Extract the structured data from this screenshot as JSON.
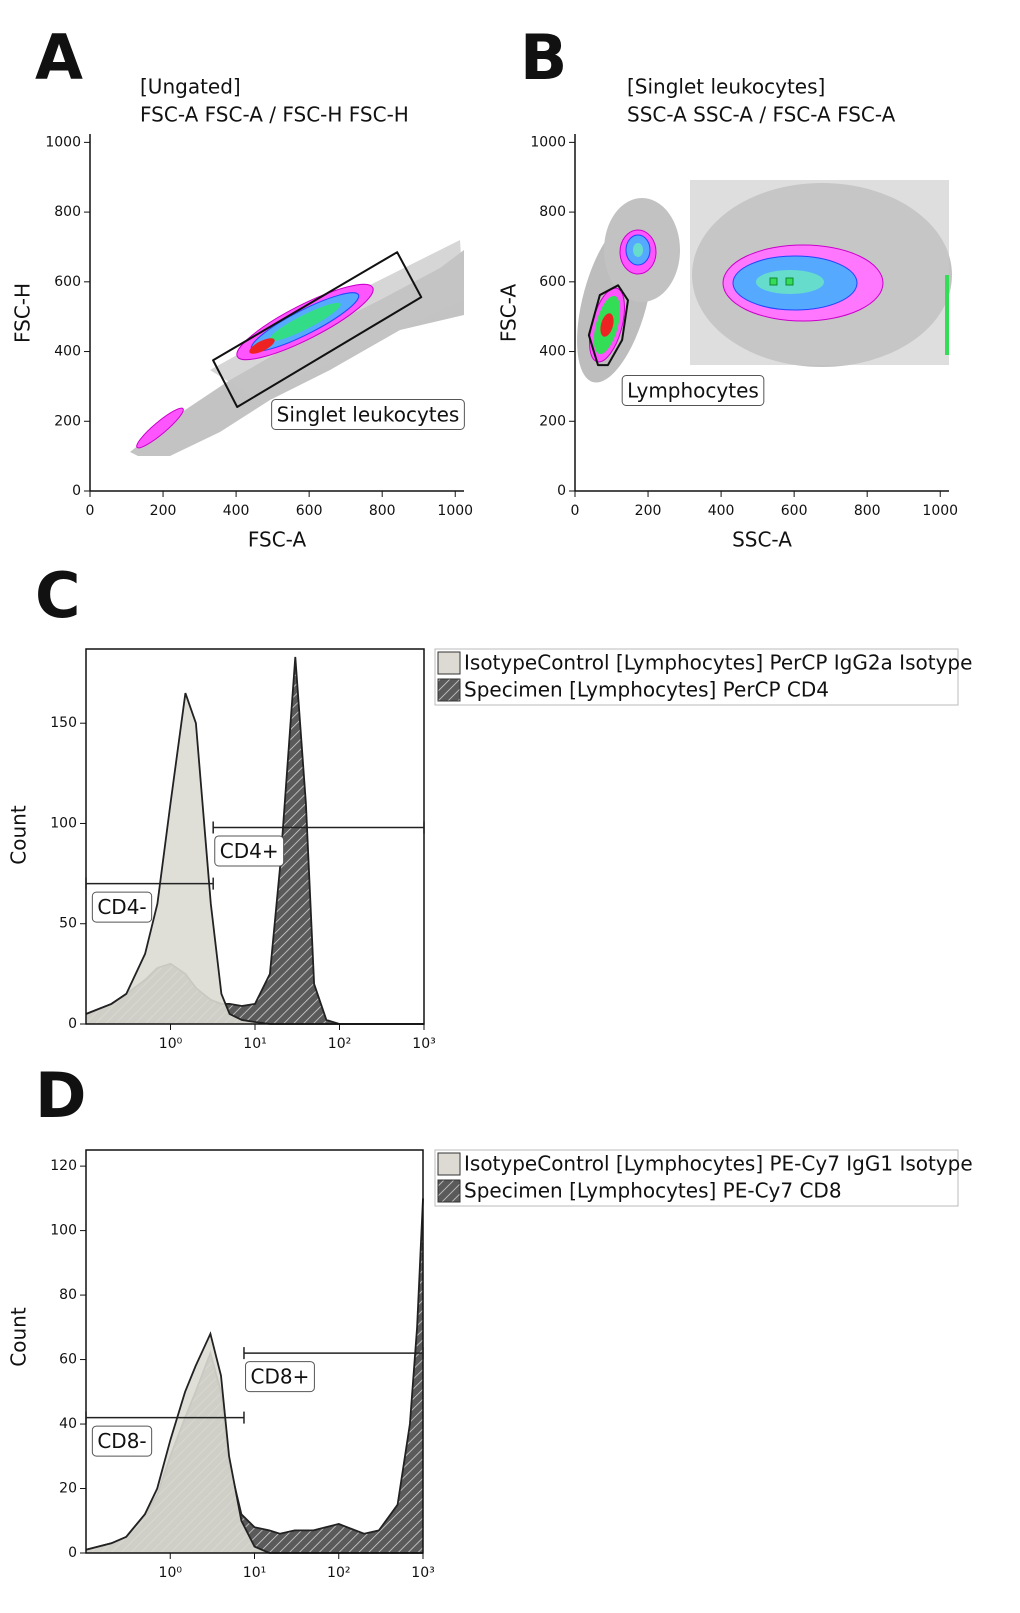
{
  "chart_data": [
    {
      "type": "scatter",
      "panel": "A",
      "title": [
        "[Ungated]",
        "FSC-A FSC-A / FSC-H FSC-H"
      ],
      "xlabel": "FSC-A",
      "ylabel": "FSC-H",
      "xlim": [
        0,
        1024
      ],
      "ylim": [
        0,
        1024
      ],
      "xticks": [
        0,
        200,
        400,
        600,
        800,
        1000
      ],
      "yticks": [
        0,
        200,
        400,
        600,
        800,
        1000
      ],
      "gate": {
        "label": "Singlet leukocytes",
        "points": [
          [
            337,
            375
          ],
          [
            841,
            685
          ],
          [
            907,
            556
          ],
          [
            403,
            241
          ]
        ]
      }
    },
    {
      "type": "scatter",
      "panel": "B",
      "title": [
        "[Singlet leukocytes]",
        "SSC-A SSC-A / FSC-A FSC-A"
      ],
      "xlabel": "SSC-A",
      "ylabel": "FSC-A",
      "xlim": [
        0,
        1024
      ],
      "ylim": [
        0,
        1024
      ],
      "xticks": [
        0,
        200,
        400,
        600,
        800,
        1000
      ],
      "yticks": [
        0,
        200,
        400,
        600,
        800,
        1000
      ],
      "gate": {
        "label": "Lymphocytes",
        "points": [
          [
            63,
            361
          ],
          [
            38,
            447
          ],
          [
            68,
            562
          ],
          [
            118,
            590
          ],
          [
            145,
            547
          ],
          [
            129,
            433
          ],
          [
            90,
            361
          ]
        ]
      }
    },
    {
      "type": "histogram",
      "panel": "C",
      "ylabel": "Count",
      "xscale": "log",
      "xlim": [
        0.1,
        1000
      ],
      "ylim": [
        0,
        187
      ],
      "xticks": [
        {
          "value": 1,
          "label": "10⁰"
        },
        {
          "value": 10,
          "label": "10¹"
        },
        {
          "value": 100,
          "label": "10²"
        },
        {
          "value": 1000,
          "label": "10³"
        }
      ],
      "yticks": [
        0,
        50,
        100,
        150
      ],
      "x": [
        0.1,
        0.2,
        0.3,
        0.5,
        0.7,
        1,
        1.5,
        2,
        3,
        4,
        5,
        7,
        10,
        15,
        20,
        30,
        40,
        50,
        70,
        100,
        200,
        500,
        1000
      ],
      "series": [
        {
          "name": "Specimen [Lymphocytes] PerCP CD4",
          "color": "#5a5a5a",
          "pattern": "hatched",
          "values": [
            5,
            10,
            15,
            22,
            28,
            30,
            25,
            18,
            12,
            10,
            10,
            9,
            10,
            25,
            80,
            183,
            110,
            20,
            2,
            0,
            0,
            0,
            0
          ]
        },
        {
          "name": "IsotypeControl [Lymphocytes] PerCP IgG2a Isotype",
          "color": "#dcdad3",
          "values": [
            5,
            10,
            15,
            35,
            60,
            110,
            165,
            150,
            60,
            15,
            5,
            2,
            1,
            0,
            0,
            0,
            0,
            0,
            0,
            0,
            0,
            0,
            0
          ]
        }
      ],
      "gates": [
        {
          "label": "CD4-",
          "x": [
            0.1,
            3.2
          ],
          "y": 70
        },
        {
          "label": "CD4+",
          "x": [
            3.2,
            1000
          ],
          "y": 98
        }
      ]
    },
    {
      "type": "histogram",
      "panel": "D",
      "ylabel": "Count",
      "xscale": "log",
      "xlim": [
        0.1,
        1000
      ],
      "ylim": [
        0,
        125
      ],
      "xticks": [
        {
          "value": 1,
          "label": "10⁰"
        },
        {
          "value": 10,
          "label": "10¹"
        },
        {
          "value": 100,
          "label": "10²"
        },
        {
          "value": 1000,
          "label": "10³"
        }
      ],
      "yticks": [
        0,
        20,
        40,
        60,
        80,
        100,
        120
      ],
      "x": [
        0.1,
        0.2,
        0.3,
        0.5,
        0.7,
        1,
        1.5,
        2,
        3,
        4,
        5,
        7,
        10,
        15,
        20,
        30,
        50,
        70,
        100,
        200,
        300,
        500,
        700,
        850,
        1000
      ],
      "series": [
        {
          "name": "Specimen [Lymphocytes] PE-Cy7 CD8",
          "color": "#5a5a5a",
          "pattern": "hatched",
          "values": [
            1,
            3,
            5,
            12,
            18,
            30,
            42,
            50,
            62,
            50,
            28,
            12,
            8,
            7,
            6,
            7,
            7,
            8,
            9,
            6,
            7,
            15,
            40,
            70,
            110
          ]
        },
        {
          "name": "IsotypeControl [Lymphocytes] PE-Cy7 IgG1 Isotype",
          "color": "#dcdad3",
          "values": [
            1,
            3,
            5,
            12,
            20,
            35,
            50,
            58,
            68,
            55,
            30,
            10,
            2,
            0,
            0,
            0,
            0,
            0,
            0,
            0,
            0,
            0,
            0,
            0,
            0
          ]
        }
      ],
      "gates": [
        {
          "label": "CD8-",
          "x": [
            0.1,
            7.5
          ],
          "y": 42
        },
        {
          "label": "CD8+",
          "x": [
            7.5,
            1000
          ],
          "y": 62
        }
      ]
    }
  ]
}
